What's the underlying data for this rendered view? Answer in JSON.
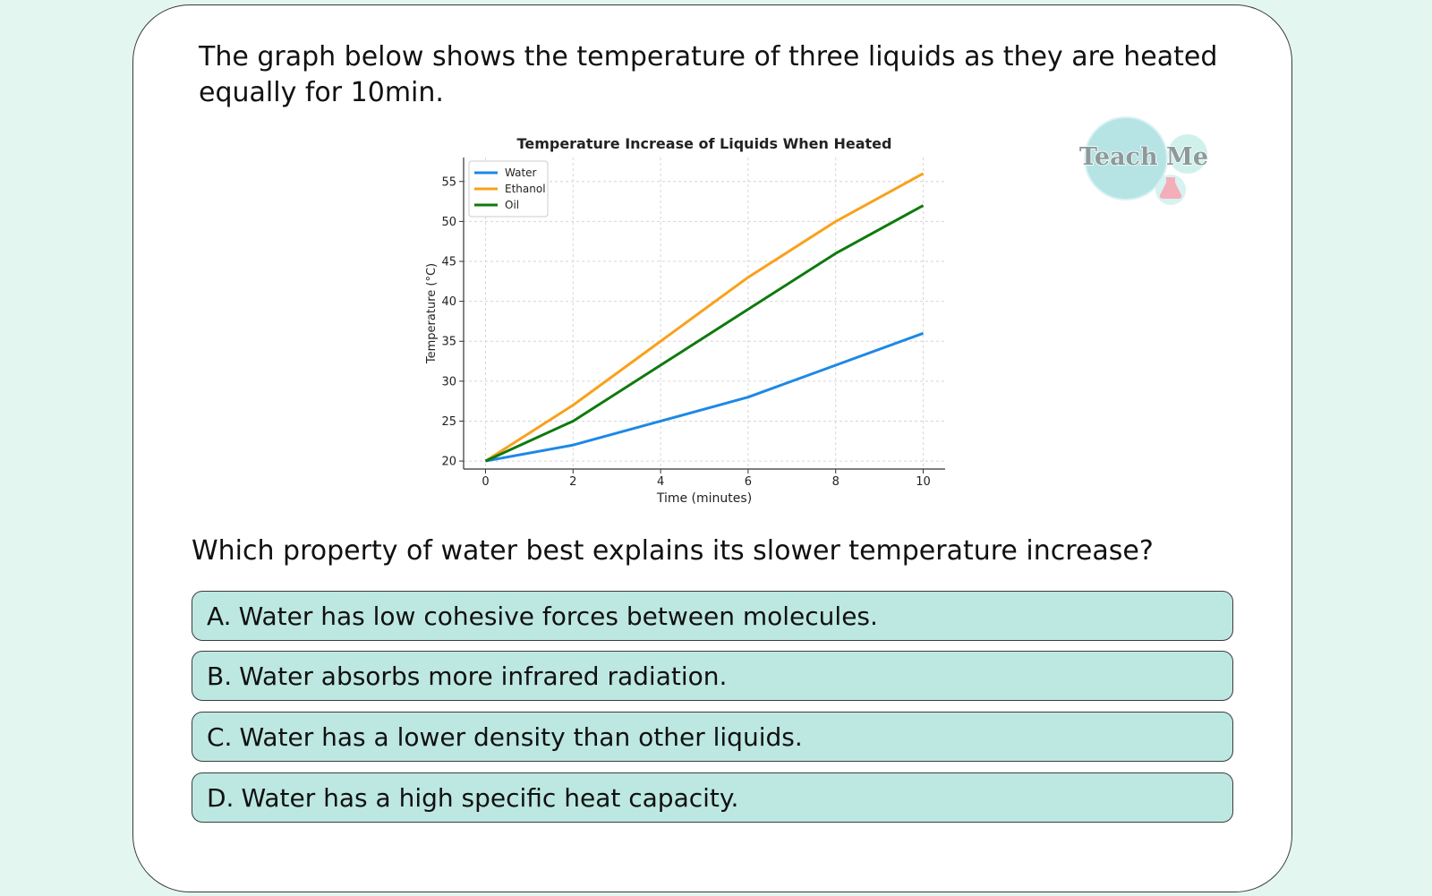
{
  "question": {
    "intro": "The graph below shows the temperature of three liquids as they are heated equally for 10min.",
    "prompt": "Which property of water best explains its slower temperature increase?"
  },
  "options": [
    {
      "letter": "A.",
      "text": "Water has low cohesive forces between molecules."
    },
    {
      "letter": "B.",
      "text": "Water absorbs more infrared radiation."
    },
    {
      "letter": "C.",
      "text": "Water has a lower density than other liquids."
    },
    {
      "letter": "D.",
      "text": "Water has a high specific heat capacity."
    }
  ],
  "logo": {
    "text": "Teach Me"
  },
  "colors": {
    "background": "#e3f6f0",
    "option_fill": "#bde8e2",
    "water": "#1e88e5",
    "ethanol": "#f9a11b",
    "oil": "#0e7a0d"
  },
  "chart_data": {
    "type": "line",
    "title": "Temperature Increase of Liquids When Heated",
    "xlabel": "Time (minutes)",
    "ylabel": "Temperature (°C)",
    "x": [
      0,
      2,
      4,
      6,
      8,
      10
    ],
    "xticks": [
      "0",
      "2",
      "4",
      "6",
      "8",
      "10"
    ],
    "yticks": [
      "20",
      "25",
      "30",
      "35",
      "40",
      "45",
      "50",
      "55"
    ],
    "xlim": [
      -0.5,
      10.5
    ],
    "ylim": [
      19,
      58
    ],
    "grid": true,
    "legend_position": "top-left",
    "series": [
      {
        "name": "Water",
        "color": "#1e88e5",
        "values": [
          20,
          22,
          25,
          28,
          32,
          36
        ]
      },
      {
        "name": "Ethanol",
        "color": "#f9a11b",
        "values": [
          20,
          27,
          35,
          43,
          50,
          56
        ]
      },
      {
        "name": "Oil",
        "color": "#0e7a0d",
        "values": [
          20,
          25,
          32,
          39,
          46,
          52
        ]
      }
    ]
  }
}
